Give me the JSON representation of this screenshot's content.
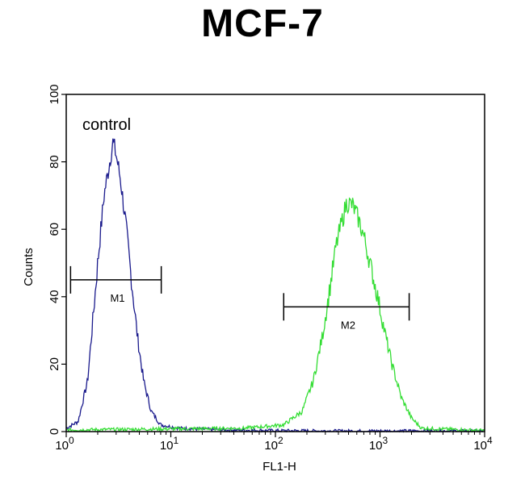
{
  "chart_data": {
    "type": "line",
    "title": "MCF-7",
    "xlabel": "FL1-H",
    "ylabel": "Counts",
    "x_scale": "log",
    "xlim": [
      1,
      10000
    ],
    "ylim": [
      0,
      100
    ],
    "x_ticks": [
      1,
      10,
      100,
      1000,
      10000
    ],
    "y_ticks": [
      0,
      20,
      40,
      60,
      80,
      100
    ],
    "grid": false,
    "colors": {
      "control": "#1a1a8c",
      "sample": "#33dd33"
    },
    "series": [
      {
        "id": "control",
        "x": [
          1.0,
          1.3,
          1.6,
          2.0,
          2.3,
          2.6,
          2.8,
          3.0,
          3.3,
          3.7,
          4.2,
          4.8,
          5.5,
          6.5,
          8.0,
          12,
          30,
          100,
          300,
          1000,
          10000
        ],
        "values": [
          1,
          3,
          15,
          50,
          70,
          80,
          86,
          82,
          75,
          62,
          45,
          28,
          15,
          6,
          2,
          1,
          0.5,
          0.3,
          0.2,
          0.2,
          0.2
        ]
      },
      {
        "id": "sample",
        "x": [
          1,
          10,
          50,
          120,
          180,
          230,
          280,
          330,
          380,
          430,
          480,
          550,
          620,
          700,
          800,
          950,
          1100,
          1300,
          1600,
          2000,
          2500,
          10000
        ],
        "values": [
          0.5,
          0.8,
          1,
          2,
          6,
          15,
          28,
          42,
          55,
          62,
          68,
          67,
          63,
          58,
          50,
          40,
          30,
          20,
          10,
          4,
          1,
          0.3
        ]
      }
    ],
    "annotations": [
      {
        "label": "control"
      },
      {
        "label": "M1",
        "range": [
          1.1,
          8.1
        ],
        "y": 45
      },
      {
        "label": "M2",
        "range": [
          120,
          1900
        ],
        "y": 37
      }
    ]
  }
}
